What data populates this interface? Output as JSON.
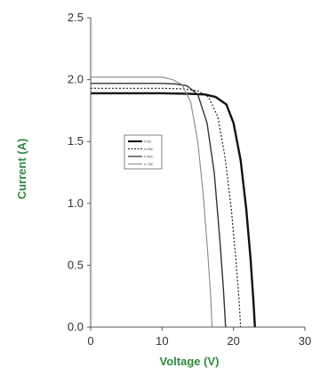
{
  "chart_data": {
    "type": "line",
    "title": "",
    "xlabel": "Voltage (V)",
    "ylabel": "Current (A)",
    "xlim": [
      0,
      30
    ],
    "ylim": [
      0,
      2.5
    ],
    "xticks": [
      0,
      10,
      20,
      30
    ],
    "yticks": [
      "0.0",
      "0.5",
      "1.0",
      "1.5",
      "2.0",
      "2.5"
    ],
    "grid": false,
    "legend_position": "center-left",
    "axis_title_color": "#2e8b3e",
    "series": [
      {
        "name": "t=0C",
        "color": "#111111",
        "dash": "solid",
        "width": 2.4,
        "x": [
          0,
          5,
          10,
          14,
          16,
          17.5,
          19,
          20,
          21,
          21.8,
          22.4,
          22.8,
          23.0
        ],
        "y": [
          1.89,
          1.89,
          1.89,
          1.885,
          1.88,
          1.86,
          1.8,
          1.65,
          1.35,
          0.95,
          0.55,
          0.2,
          0
        ]
      },
      {
        "name": "t=25C",
        "color": "#222222",
        "dash": "dotted",
        "width": 1.2,
        "x": [
          0,
          5,
          10,
          13,
          15,
          16.5,
          17.8,
          18.8,
          19.7,
          20.4,
          20.8,
          21.0
        ],
        "y": [
          1.93,
          1.93,
          1.93,
          1.925,
          1.91,
          1.86,
          1.7,
          1.38,
          0.95,
          0.5,
          0.2,
          0
        ]
      },
      {
        "name": "t=50C",
        "color": "#333333",
        "dash": "solid",
        "width": 1.4,
        "x": [
          0,
          5,
          10,
          12,
          13.5,
          15,
          16.3,
          17.3,
          18.1,
          18.6,
          18.9
        ],
        "y": [
          1.97,
          1.97,
          1.97,
          1.965,
          1.95,
          1.88,
          1.65,
          1.25,
          0.7,
          0.3,
          0
        ]
      },
      {
        "name": "t=75C",
        "color": "#888888",
        "dash": "solid",
        "width": 1.1,
        "x": [
          0,
          5,
          10,
          11.5,
          12.8,
          14,
          15,
          15.8,
          16.4,
          16.8,
          17.0
        ],
        "y": [
          2.02,
          2.02,
          2.02,
          2.0,
          1.96,
          1.82,
          1.5,
          1.05,
          0.6,
          0.25,
          0
        ]
      }
    ]
  }
}
